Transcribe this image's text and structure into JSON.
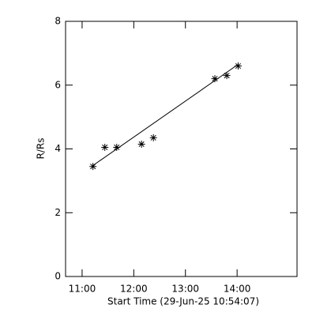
{
  "chart_data": {
    "type": "scatter",
    "xlabel": "Start Time (29-Jun-25 10:54:07)",
    "ylabel": "R/Rs",
    "xlim": [
      10.68,
      15.16
    ],
    "xticks": [
      {
        "value": 11,
        "label": "11:00"
      },
      {
        "value": 12,
        "label": "12:00"
      },
      {
        "value": 13,
        "label": "13:00"
      },
      {
        "value": 14,
        "label": "14:00"
      }
    ],
    "ylim": [
      0,
      8
    ],
    "yticks": [
      0,
      2,
      4,
      6,
      8
    ],
    "color": "#000000",
    "series": [
      {
        "x": [
          11.21,
          11.44,
          11.67,
          12.15,
          12.38,
          13.57,
          13.8,
          14.02
        ],
        "values": [
          3.45,
          4.05,
          4.05,
          4.15,
          4.35,
          6.2,
          6.3,
          6.6
        ]
      }
    ],
    "fit": {
      "x": [
        11.21,
        14.02
      ],
      "values": [
        3.48,
        6.65
      ]
    }
  }
}
